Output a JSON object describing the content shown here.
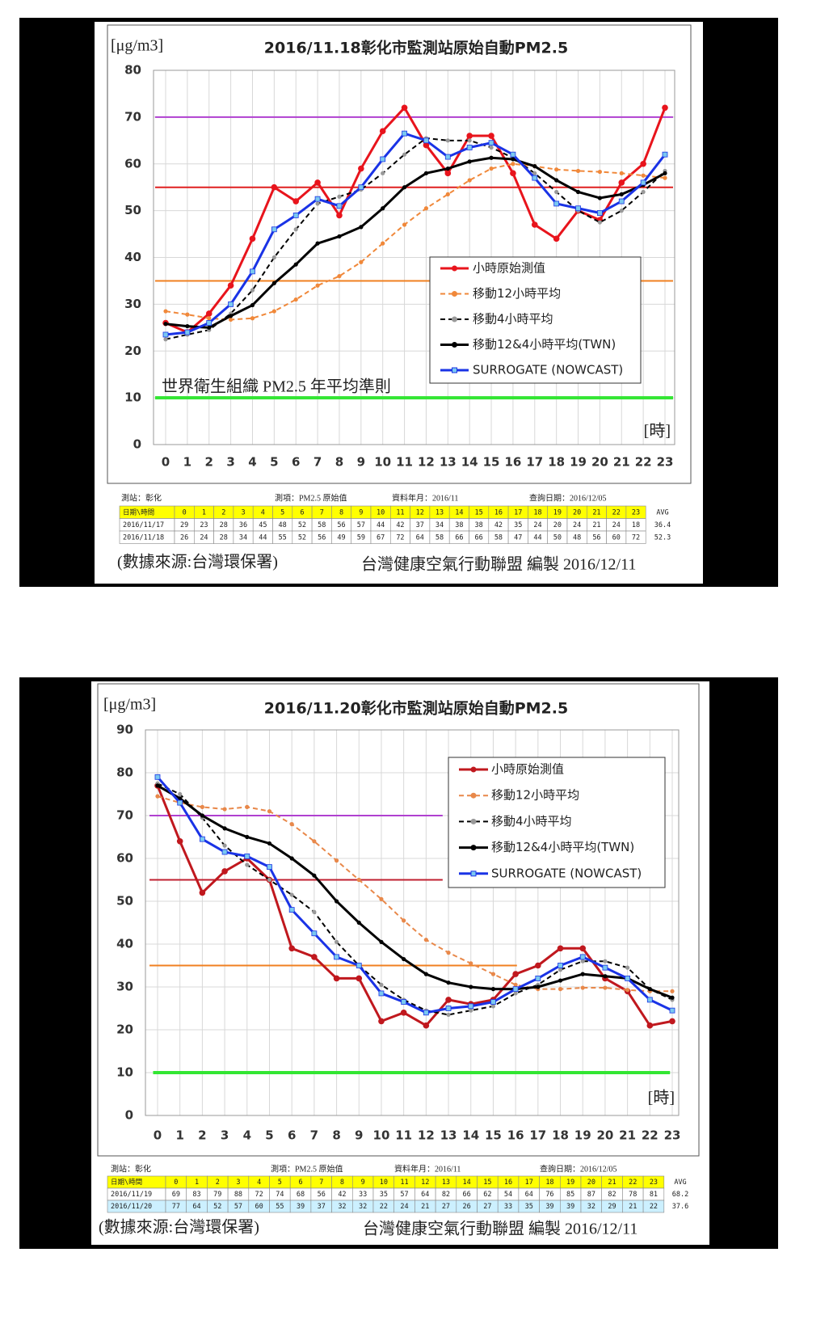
{
  "chart_data": [
    {
      "type": "line",
      "title": "2016/11.18彰化市監測站原始自動PM2.5",
      "ylabel": "[μg/m3]",
      "xlabel": "[時]",
      "annotation": "世界衛生組織 PM2.5 年平均準則",
      "categories": [
        0,
        1,
        2,
        3,
        4,
        5,
        6,
        7,
        8,
        9,
        10,
        11,
        12,
        13,
        14,
        15,
        16,
        17,
        18,
        19,
        20,
        21,
        22,
        23
      ],
      "ylim": [
        0,
        80
      ],
      "yticks": [
        0,
        10,
        20,
        30,
        40,
        50,
        60,
        70,
        80
      ],
      "grid": true,
      "legend": "center right",
      "hlines": [
        {
          "value": 70,
          "color": "#b040d0"
        },
        {
          "value": 55,
          "color": "#e02020"
        },
        {
          "value": 35,
          "color": "#f08020"
        },
        {
          "value": 10,
          "color": "#33e633"
        }
      ],
      "series": [
        {
          "name": "小時原始測值",
          "color": "#e8141c",
          "dash": false,
          "marker": "circle",
          "marker_color": "#e8141c",
          "values": [
            26,
            24,
            28,
            34,
            44,
            55,
            52,
            56,
            49,
            59,
            67,
            72,
            64,
            58,
            66,
            66,
            58,
            47,
            44,
            50,
            48,
            56,
            60,
            72
          ]
        },
        {
          "name": "移動12小時平均",
          "color": "#f0883a",
          "dash": true,
          "marker": "circle",
          "marker_color": "#f0883a",
          "values": [
            28.5,
            27.8,
            27,
            26.7,
            27,
            28.5,
            31,
            34,
            36,
            39,
            43,
            47,
            50.5,
            53.5,
            56.5,
            59,
            60,
            59.5,
            58.8,
            58.5,
            58.3,
            58,
            57.5,
            57
          ]
        },
        {
          "name": "移動4小時平均",
          "color": "#000000",
          "dash": true,
          "marker": "circle",
          "marker_color": "#999999",
          "values": [
            22.5,
            23.5,
            24.5,
            28,
            33,
            40,
            46,
            51.5,
            53,
            54.5,
            58,
            62,
            65.5,
            65,
            65,
            63.5,
            61.3,
            58,
            54,
            50,
            47.5,
            50,
            54,
            58.5
          ]
        },
        {
          "name": "移動12&4小時平均(TWN)",
          "color": "#000000",
          "dash": false,
          "marker": "circle",
          "marker_color": "#000000",
          "values": [
            25.8,
            25.3,
            25,
            27.5,
            29.8,
            34.5,
            38.5,
            43,
            44.5,
            46.5,
            50.5,
            55,
            58,
            59,
            60.5,
            61.3,
            61,
            59.5,
            56.5,
            54,
            52.7,
            53.5,
            55.5,
            58
          ]
        },
        {
          "name": "SURROGATE (NOWCAST)",
          "color": "#1a33e6",
          "dash": false,
          "marker": "square",
          "marker_color": "#7ac8f0",
          "values": [
            23.5,
            24,
            26,
            30,
            37,
            46,
            49,
            52.5,
            51,
            55,
            61,
            66.5,
            65,
            61.5,
            63.5,
            64.5,
            62,
            57,
            51.5,
            50.5,
            49.5,
            52,
            56,
            62
          ]
        }
      ],
      "table": {
        "info": [
          "測站：彰化",
          "測項：PM2.5 原始值",
          "資料年月：2016/11",
          "查詢日期：2016/12/05"
        ],
        "header": "日期\\時間",
        "avg_label": "AVG",
        "rows": [
          {
            "date": "2016/11/17",
            "values": [
              29,
              23,
              28,
              36,
              45,
              48,
              52,
              58,
              56,
              57,
              44,
              42,
              37,
              34,
              38,
              38,
              42,
              35,
              24,
              20,
              24,
              21,
              24,
              18
            ],
            "avg": 36.4
          },
          {
            "date": "2016/11/18",
            "values": [
              26,
              24,
              28,
              34,
              44,
              55,
              52,
              56,
              49,
              59,
              67,
              72,
              64,
              58,
              66,
              66,
              58,
              47,
              44,
              50,
              48,
              56,
              60,
              72
            ],
            "avg": 52.3
          }
        ]
      },
      "source": "(數據來源:台灣環保署)",
      "credit": "台灣健康空氣行動聯盟 編製 2016/12/11"
    },
    {
      "type": "line",
      "title": "2016/11.20彰化市監測站原始自動PM2.5",
      "ylabel": "[μg/m3]",
      "xlabel": "[時]",
      "categories": [
        0,
        1,
        2,
        3,
        4,
        5,
        6,
        7,
        8,
        9,
        10,
        11,
        12,
        13,
        14,
        15,
        16,
        17,
        18,
        19,
        20,
        21,
        22,
        23
      ],
      "ylim": [
        0,
        90
      ],
      "yticks": [
        0,
        10,
        20,
        30,
        40,
        50,
        60,
        70,
        80,
        90
      ],
      "grid": true,
      "legend": "upper right",
      "hlines": [
        {
          "value": 70,
          "color": "#b040d0",
          "span": [
            -0.36,
            12.74
          ]
        },
        {
          "value": 55,
          "color": "#c02030",
          "span": [
            -0.36,
            12.74
          ]
        },
        {
          "value": 35,
          "color": "#f08020",
          "span": [
            -0.36,
            16.06
          ]
        },
        {
          "value": 10,
          "color": "#33e633",
          "span": [
            -0.2,
            22.9
          ]
        }
      ],
      "series": [
        {
          "name": "小時原始測值",
          "color": "#c0181e",
          "dash": false,
          "marker": "circle",
          "marker_color": "#c0181e",
          "values": [
            77,
            64,
            52,
            57,
            60,
            55,
            39,
            37,
            32,
            32,
            22,
            24,
            21,
            27,
            26,
            27,
            33,
            35,
            39,
            39,
            32,
            29,
            21,
            22
          ]
        },
        {
          "name": "移動12小時平均",
          "color": "#e8884a",
          "dash": true,
          "marker": "circle",
          "marker_color": "#e8884a",
          "values": [
            74.5,
            73,
            72,
            71.5,
            72,
            71,
            68,
            64,
            59.5,
            55,
            50.5,
            45.5,
            41,
            38,
            35.5,
            33,
            30.5,
            29.5,
            29.5,
            29.8,
            29.8,
            29.3,
            29,
            29
          ]
        },
        {
          "name": "移動4小時平均",
          "color": "#000000",
          "dash": true,
          "marker": "circle",
          "marker_color": "#999999",
          "values": [
            77.5,
            75,
            69.5,
            63,
            58.5,
            55,
            51.5,
            47.5,
            40.5,
            35,
            30.5,
            27,
            24.5,
            23.5,
            24.5,
            25.5,
            28.5,
            30.5,
            34,
            36,
            36,
            34.5,
            29.5,
            27
          ]
        },
        {
          "name": "移動12&4小時平均(TWN)",
          "color": "#000000",
          "dash": false,
          "marker": "circle",
          "marker_color": "#000000",
          "values": [
            77,
            74,
            70,
            67,
            65,
            63.5,
            60,
            56,
            50,
            45,
            40.5,
            36.5,
            33,
            31,
            30,
            29.5,
            29.5,
            30,
            31.5,
            33,
            32.5,
            32,
            29.5,
            27.5
          ]
        },
        {
          "name": "SURROGATE (NOWCAST)",
          "color": "#1a33e6",
          "dash": false,
          "marker": "square",
          "marker_color": "#7ac8f0",
          "values": [
            79,
            73,
            64.5,
            61.5,
            60.5,
            58,
            48,
            42.5,
            37,
            35,
            28.5,
            26.5,
            24,
            25,
            25.5,
            26.5,
            29.5,
            32,
            35,
            37,
            34.5,
            32,
            27,
            24.5
          ]
        }
      ],
      "table": {
        "info": [
          "測站：彰化",
          "測項：PM2.5 原始值",
          "資料年月：2016/11",
          "查詢日期：2016/12/05"
        ],
        "header": "日期\\時間",
        "avg_label": "AVG",
        "rows": [
          {
            "date": "2016/11/19",
            "values": [
              69,
              83,
              79,
              88,
              72,
              74,
              68,
              56,
              42,
              33,
              35,
              57,
              64,
              82,
              66,
              62,
              54,
              64,
              76,
              85,
              87,
              82,
              78,
              81
            ],
            "avg": 68.2
          },
          {
            "date": "2016/11/20",
            "values": [
              77,
              64,
              52,
              57,
              60,
              55,
              39,
              37,
              32,
              32,
              22,
              24,
              21,
              27,
              26,
              27,
              33,
              35,
              39,
              39,
              32,
              29,
              21,
              22
            ],
            "avg": 37.6
          }
        ]
      },
      "source": "(數據來源:台灣環保署)",
      "credit": "台灣健康空氣行動聯盟 編製 2016/12/11"
    }
  ]
}
